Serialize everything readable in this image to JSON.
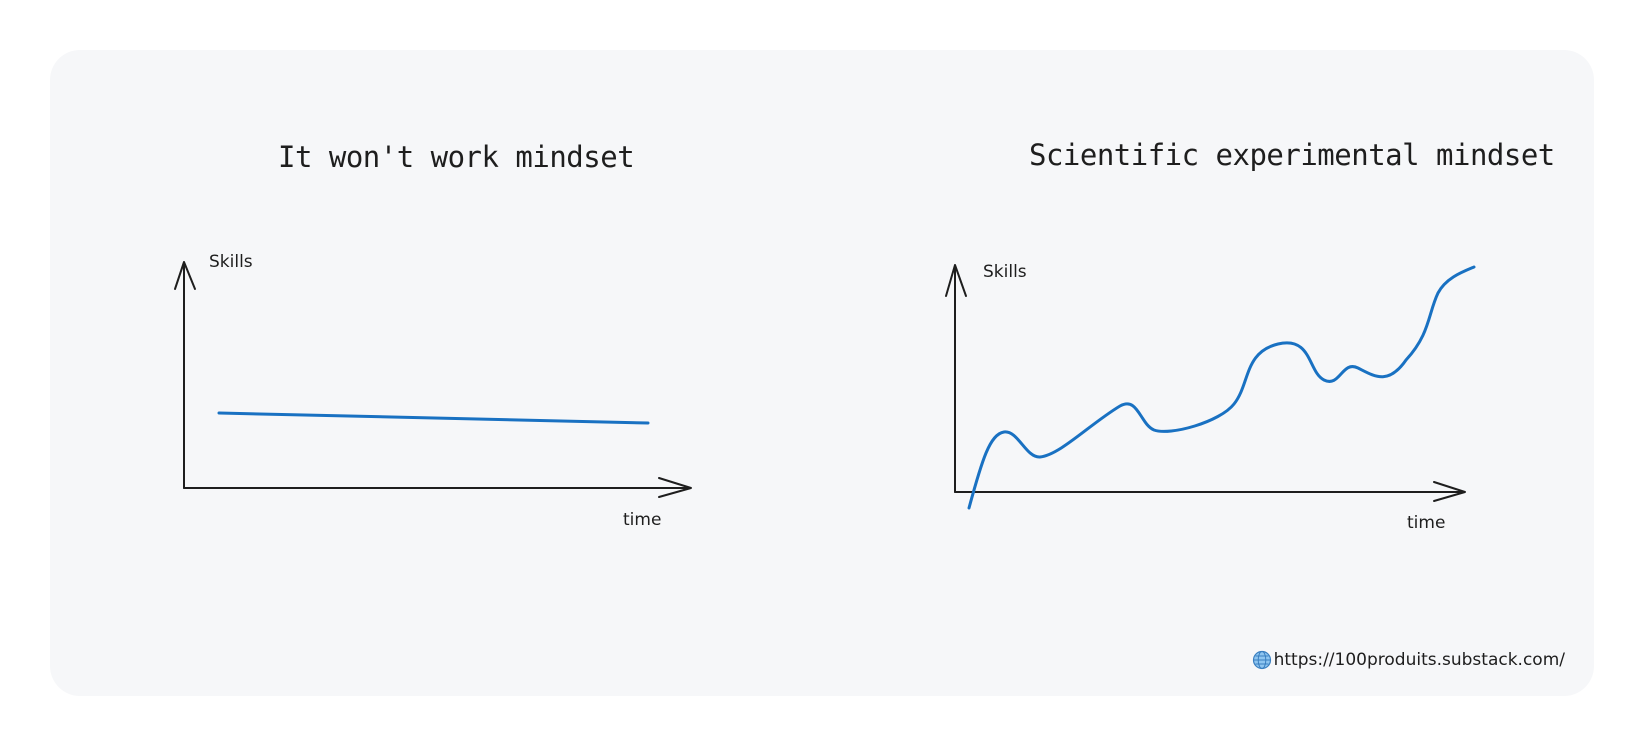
{
  "panels": [
    {
      "title": "It won't work mindset",
      "y_axis_label": "Skills",
      "x_axis_label": "time",
      "line_color": "#1971c2",
      "trend": "flat, slightly declining"
    },
    {
      "title": "Scientific experimental mindset",
      "y_axis_label": "Skills",
      "x_axis_label": "time",
      "line_color": "#1971c2",
      "trend": "wavy, rising overall"
    }
  ],
  "footer": {
    "icon": "globe-icon",
    "url": "https://100produits.substack.com/"
  },
  "colors": {
    "card_background": "#f6f7f9",
    "ink": "#1e1e1e",
    "accent": "#1971c2"
  }
}
